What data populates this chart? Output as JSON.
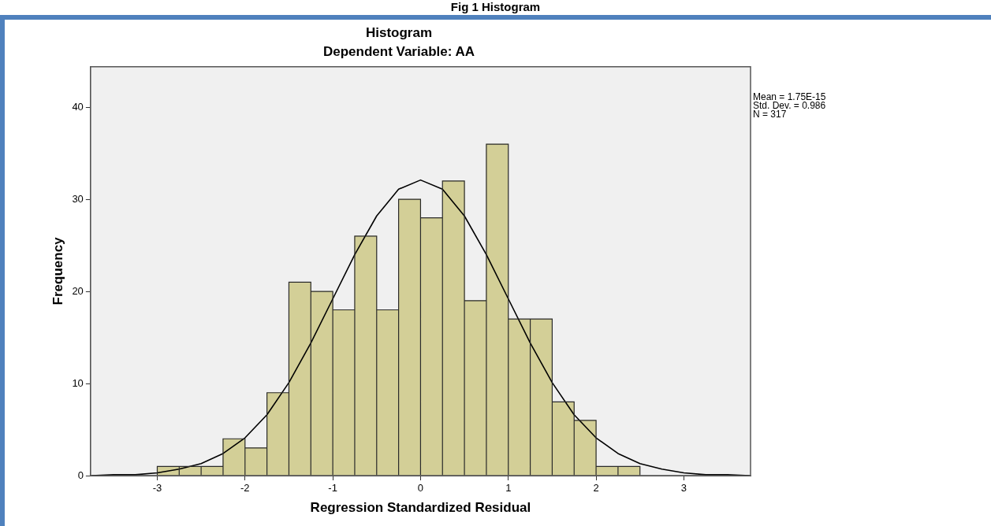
{
  "chart_data": {
    "type": "histogram",
    "title": "Histogram",
    "subtitle": "Dependent Variable: AA",
    "xlabel": "Regression Standardized Residual",
    "ylabel": "Frequency",
    "series": [
      {
        "type": "histogram",
        "bins": [
          -3,
          -2.75,
          -2.5,
          -2.25,
          -2,
          -1.75,
          -1.5,
          -1.25,
          -1,
          -0.75,
          -0.5,
          -0.25,
          0,
          0.25,
          0.5,
          0.75,
          1,
          1.25,
          1.5,
          1.75,
          2,
          2.25,
          2.5
        ],
        "values": [
          1,
          1,
          1,
          4,
          3,
          9,
          21,
          20,
          18,
          26,
          18,
          30,
          28,
          32,
          19,
          36,
          17,
          17,
          8,
          6,
          1,
          1
        ],
        "color": "#d3cf97"
      },
      {
        "type": "line",
        "color": "#000000",
        "x": [
          -3.75,
          -3.5,
          -3.25,
          -3,
          -2.75,
          -2.5,
          -2.25,
          -2,
          -1.75,
          -1.5,
          -1.25,
          -1,
          -0.75,
          -0.5,
          -0.25,
          0,
          0.25,
          0.5,
          0.75,
          1,
          1.25,
          1.5,
          1.75,
          2,
          2.25,
          2.5,
          2.75,
          3,
          3.25,
          3.5,
          3.75
        ],
        "values": [
          0,
          0.1,
          0.1,
          0.3,
          0.7,
          1.3,
          2.4,
          4.1,
          6.6,
          10.1,
          14.4,
          19.2,
          24,
          28.2,
          31.1,
          32.1,
          31.1,
          28.2,
          24,
          19.2,
          14.4,
          10.1,
          6.6,
          4.1,
          2.4,
          1.3,
          0.7,
          0.3,
          0.1,
          0.1,
          0
        ]
      }
    ],
    "xlim": [
      -3.76,
      3.76
    ],
    "ylim": [
      0,
      44.4
    ],
    "xticks": [
      -3,
      -2,
      -1,
      0,
      1,
      2,
      3
    ],
    "yticks": [
      0,
      10,
      20,
      30,
      40
    ],
    "grid": false,
    "legend": false,
    "marker": "none",
    "annotations": [
      "Fig 1 Histogram",
      "Mean = 1.75E-15",
      "Std. Dev. = 0.986",
      "N = 317"
    ]
  }
}
